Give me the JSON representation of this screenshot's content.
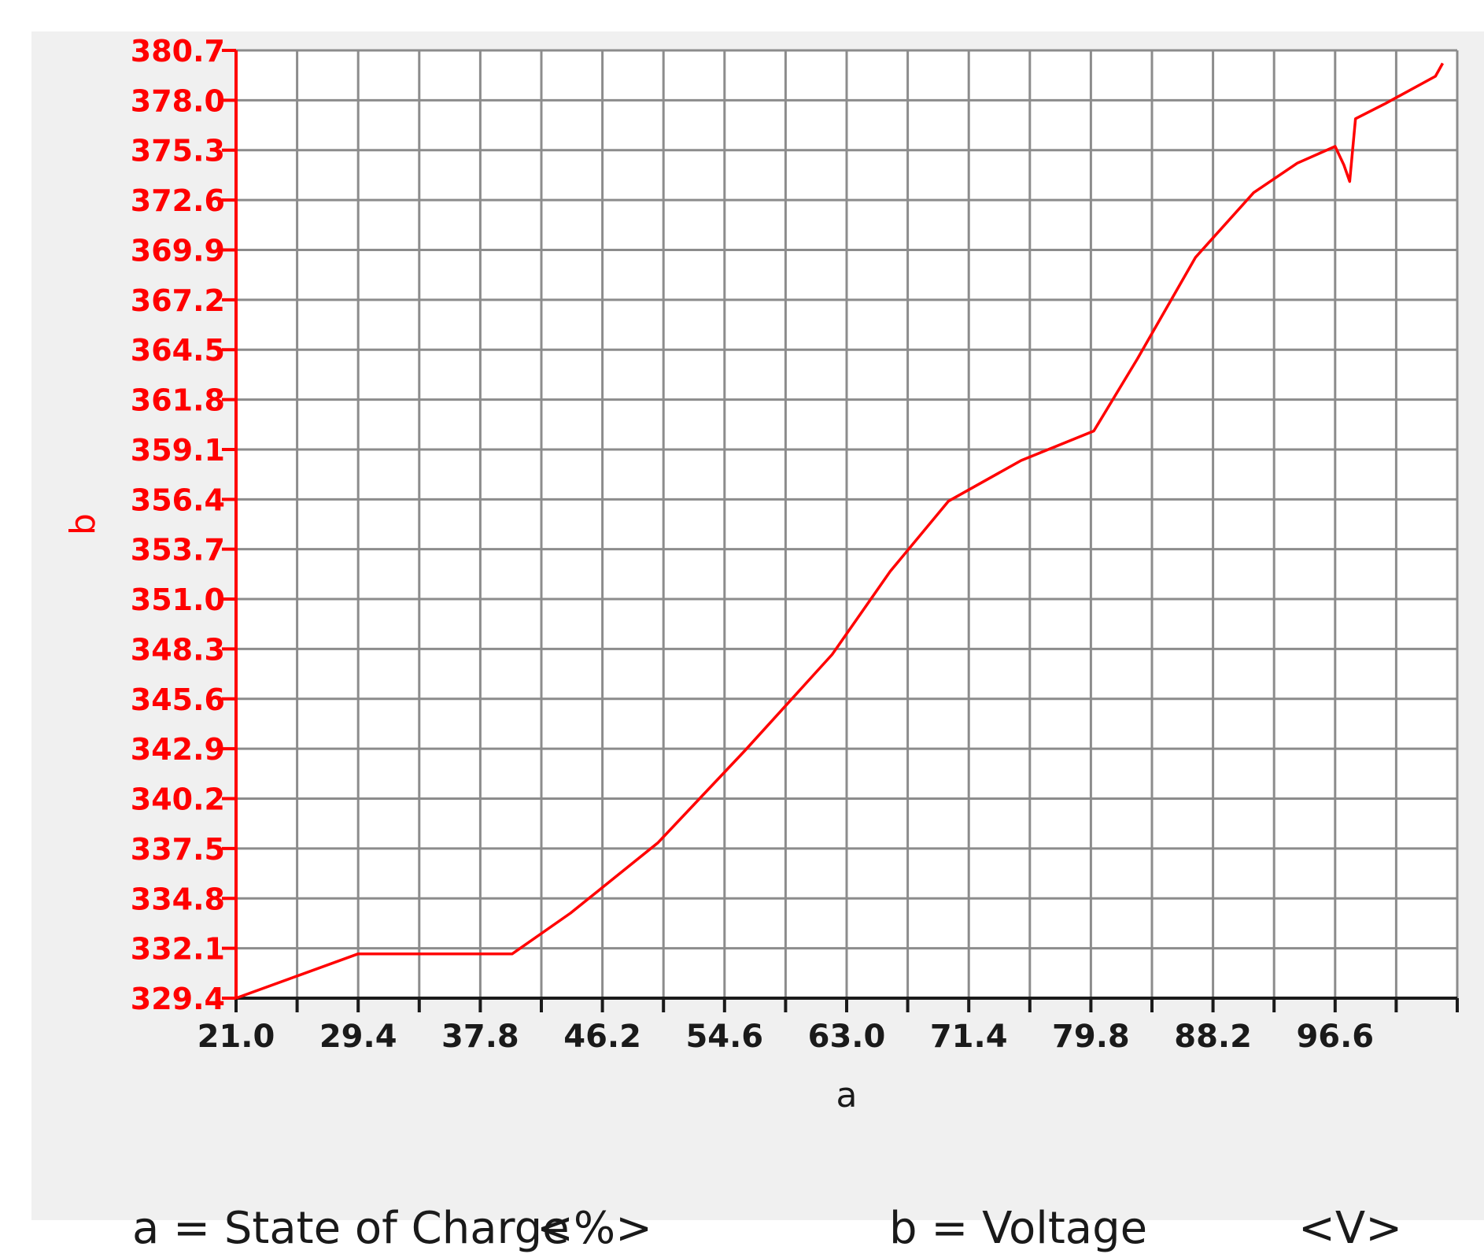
{
  "chart_data": {
    "type": "line",
    "xlabel": "a",
    "ylabel": "b",
    "xlim": [
      21.0,
      105.0
    ],
    "ylim": [
      329.4,
      380.7
    ],
    "x_ticks": [
      "21.0",
      "29.4",
      "37.8",
      "46.2",
      "54.6",
      "63.0",
      "71.4",
      "79.8",
      "88.2",
      "96.6"
    ],
    "y_ticks": [
      "329.4",
      "332.1",
      "334.8",
      "337.5",
      "340.2",
      "342.9",
      "345.6",
      "348.3",
      "351.0",
      "353.7",
      "356.4",
      "359.1",
      "361.8",
      "364.5",
      "367.2",
      "369.9",
      "372.6",
      "375.3",
      "378.0",
      "380.7"
    ],
    "grid": true,
    "colors": {
      "axis": "#ff0000",
      "line": "#ff0000",
      "grid": "#8c8c8c",
      "plot_bg": "#ffffff"
    },
    "series": [
      {
        "x": [
          21.0,
          29.4,
          40.0,
          44.0,
          50.0,
          56.0,
          62.0,
          66.0,
          70.0,
          75.0,
          80.0,
          83.0,
          87.0,
          91.0,
          94.0,
          96.6,
          97.2,
          97.6,
          98.0,
          100.0,
          103.5,
          104.0
        ],
        "y": [
          329.4,
          331.8,
          331.8,
          334.0,
          337.8,
          342.8,
          348.0,
          352.5,
          356.3,
          358.5,
          360.1,
          364.0,
          369.5,
          373.0,
          374.6,
          375.5,
          374.5,
          373.6,
          377.0,
          377.8,
          379.3,
          380.0
        ]
      }
    ]
  },
  "legend": {
    "a_label": "a = State of Charge",
    "a_unit": "<%>",
    "b_label": "b = Voltage",
    "b_unit": "<V>"
  }
}
